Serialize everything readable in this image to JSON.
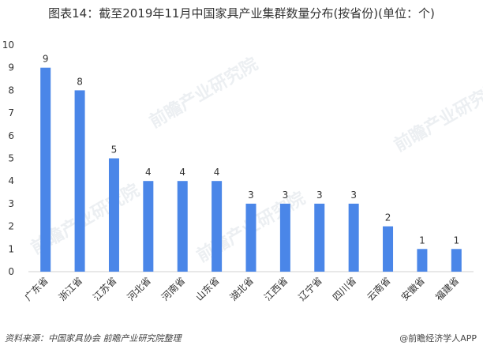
{
  "chart_data": {
    "type": "bar",
    "title": "图表14：截至2019年11月中国家具产业集群数量分布(按省份)(单位：个)",
    "categories": [
      "广东省",
      "浙江省",
      "江苏省",
      "河北省",
      "河南省",
      "山东省",
      "湖北省",
      "江西省",
      "辽宁省",
      "四川省",
      "云南省",
      "安徽省",
      "福建省"
    ],
    "values": [
      9,
      8,
      5,
      4,
      4,
      4,
      3,
      3,
      3,
      3,
      2,
      1,
      1
    ],
    "ylim": [
      0,
      10
    ],
    "yticks": [
      0,
      1,
      2,
      3,
      4,
      5,
      6,
      7,
      8,
      9,
      10
    ],
    "xlabel": "",
    "ylabel": "",
    "grid": false,
    "bar_color": "#4a86e8",
    "data_labels": true
  },
  "source": "资料来源：中国家具协会 前瞻产业研究院整理",
  "brand": "@前瞻经济学人APP",
  "watermark_text": "前瞻产业研究院"
}
